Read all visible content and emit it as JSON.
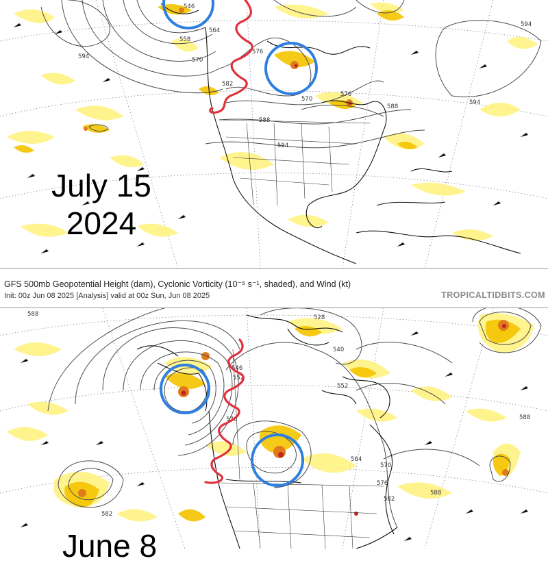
{
  "top_panel": {
    "date_line1": "July 15",
    "date_line2": "2024",
    "contour_labels": [
      "546",
      "558",
      "564",
      "570",
      "576",
      "582",
      "588",
      "594",
      "594",
      "594",
      "576",
      "588",
      "594",
      "570"
    ]
  },
  "header": {
    "title": "GFS 500mb Geopotential Height (dam), Cyclonic Vorticity (10⁻⁵ s⁻¹, shaded), and Wind (kt)",
    "init_line": "Init: 00z Jun 08 2025   [Analysis]   valid at 00z Sun, Jun 08 2025",
    "source": "TROPICALTIDBITS.COM"
  },
  "bottom_panel": {
    "date_line1": "June 8",
    "contour_labels": [
      "588",
      "546",
      "552",
      "570",
      "540",
      "552",
      "564",
      "570",
      "576",
      "582",
      "588",
      "582",
      "588",
      "528"
    ]
  },
  "colors": {
    "vorticity_light": "#fff27a",
    "vorticity_mid": "#f5c400",
    "vorticity_high": "#e07a1c",
    "vorticity_max": "#c0261c",
    "circle": "#2e7fe0",
    "wave": "#e0303c",
    "contour": "#4a4a4a",
    "coast": "#111111"
  }
}
